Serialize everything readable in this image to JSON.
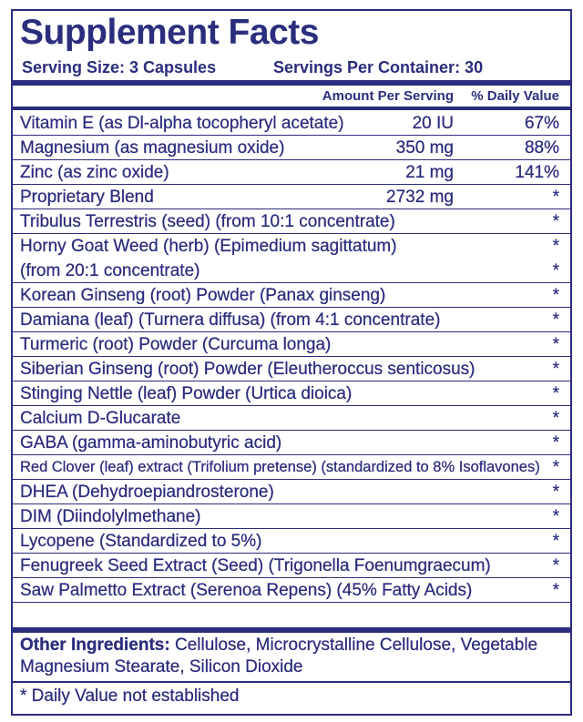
{
  "title": "Supplement Facts",
  "serving_size": "Serving Size: 3 Capsules",
  "servings_per_container": "Servings Per Container: 30",
  "columns": {
    "amount": "Amount Per Serving",
    "daily_value": "% Daily Value"
  },
  "rows": [
    {
      "name": "Vitamin E (as Dl-alpha tocopheryl acetate)",
      "amount": "20 IU",
      "daily_value": "67%"
    },
    {
      "name": "Magnesium (as magnesium oxide)",
      "amount": "350 mg",
      "daily_value": "88%"
    },
    {
      "name": "Zinc (as zinc oxide)",
      "amount": "21 mg",
      "daily_value": "141%"
    },
    {
      "name": "Proprietary Blend",
      "amount": "2732 mg",
      "daily_value": "*"
    },
    {
      "name": "Tribulus Terrestris (seed) (from 10:1 concentrate)",
      "daily_value": "*"
    },
    {
      "name": "Horny Goat Weed (herb) (Epimedium sagittatum)",
      "daily_value": "*"
    },
    {
      "name": "(from 20:1 concentrate)",
      "daily_value": "*"
    },
    {
      "name": "Korean Ginseng (root) Powder (Panax ginseng)",
      "daily_value": "*"
    },
    {
      "name": "Damiana (leaf) (Turnera diffusa) (from 4:1 concentrate)",
      "daily_value": "*"
    },
    {
      "name": "Turmeric (root) Powder (Curcuma longa)",
      "daily_value": "*"
    },
    {
      "name": "Siberian Ginseng (root) Powder (Eleutheroccus senticosus)",
      "daily_value": "*"
    },
    {
      "name": "Stinging Nettle (leaf) Powder (Urtica dioica)",
      "daily_value": "*"
    },
    {
      "name": "Calcium D-Glucarate",
      "daily_value": "*"
    },
    {
      "name": "GABA (gamma-aminobutyric acid)",
      "daily_value": "*"
    },
    {
      "name": "Red Clover (leaf) extract (Trifolium pretense) (standardized to 8% Isoflavones)",
      "daily_value": "*"
    },
    {
      "name": "DHEA (Dehydroepiandrosterone)",
      "daily_value": "*"
    },
    {
      "name": "DIM (Diindolylmethane)",
      "daily_value": "*"
    },
    {
      "name": "Lycopene (Standardized to 5%)",
      "daily_value": "*"
    },
    {
      "name": "Fenugreek Seed Extract (Seed) (Trigonella Foenumgraecum)",
      "daily_value": "*"
    },
    {
      "name": "Saw Palmetto Extract (Serenoa Repens) (45% Fatty Acids)",
      "daily_value": "*"
    }
  ],
  "other_ingredients": {
    "label": "Other Ingredients:",
    "line1": "Cellulose, Microcrystalline Cellulose, Vegetable",
    "line2": "Magnesium Stearate, Silicon Dioxide"
  },
  "footnote": "* Daily Value not established"
}
